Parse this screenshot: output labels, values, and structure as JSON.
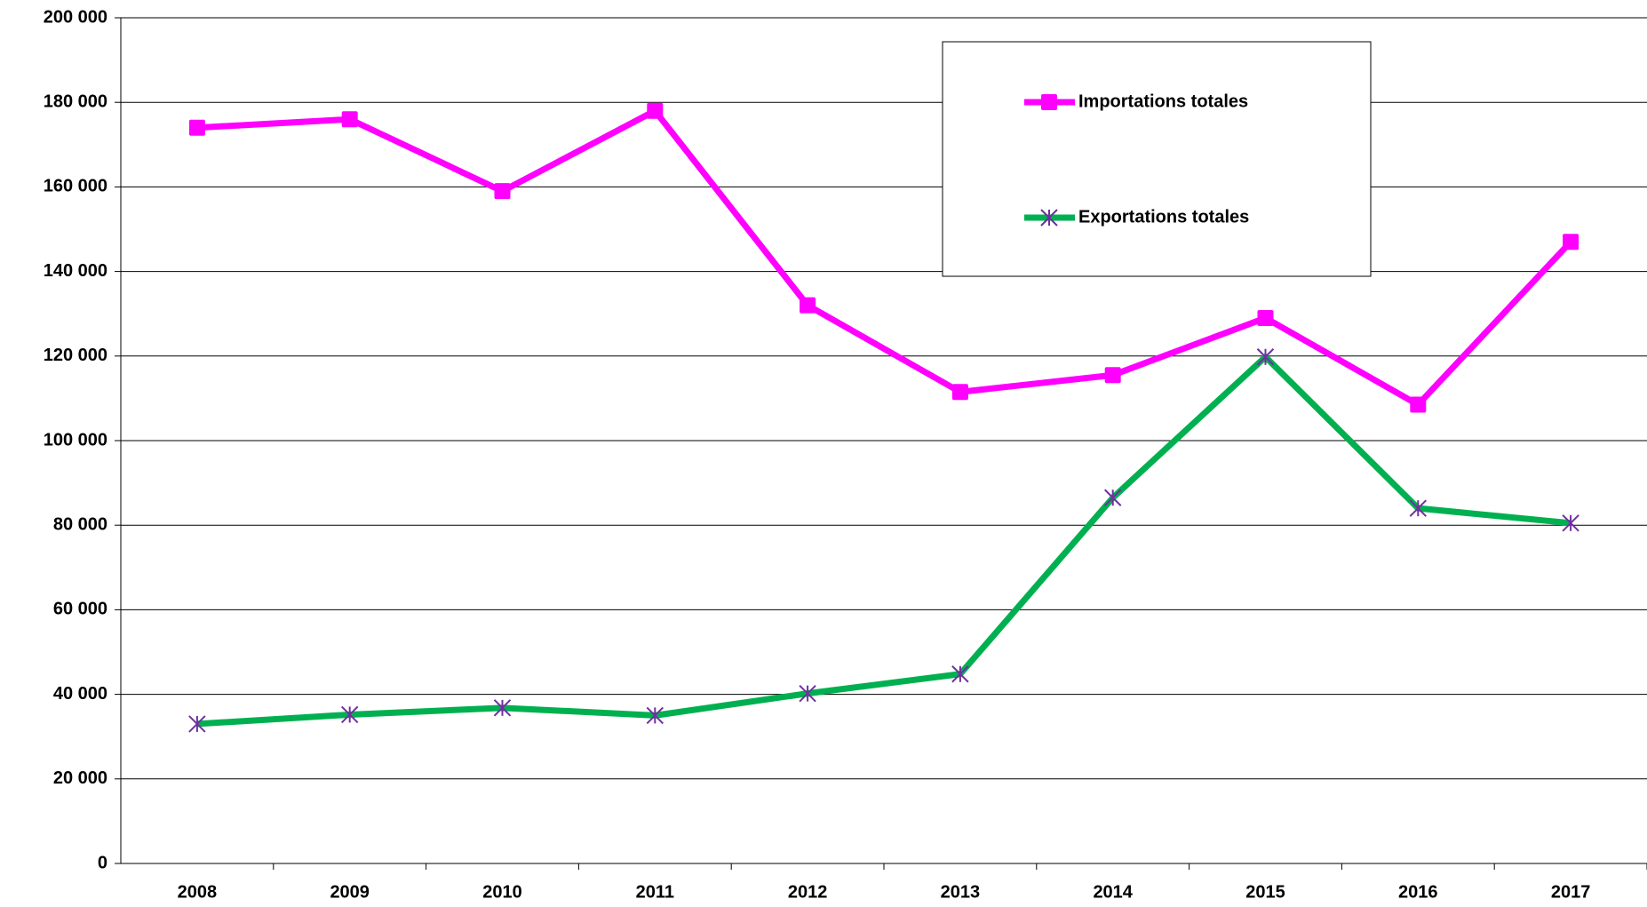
{
  "chart_data": {
    "type": "line",
    "categories": [
      "2008",
      "2009",
      "2010",
      "2011",
      "2012",
      "2013",
      "2014",
      "2015",
      "2016",
      "2017"
    ],
    "series": [
      {
        "name": "Importations totales",
        "color": "#ff00ff",
        "marker": "square",
        "values": [
          174000,
          176000,
          159000,
          178000,
          132000,
          111500,
          115500,
          129000,
          108500,
          147000
        ]
      },
      {
        "name": "Exportations totales",
        "color": "#00b050",
        "marker_color": "#7030a0",
        "marker": "star",
        "values": [
          33000,
          35200,
          36800,
          35000,
          40200,
          44800,
          86500,
          119800,
          84000,
          80500
        ]
      }
    ],
    "ylim": [
      0,
      200000
    ],
    "yticks": [
      {
        "value": 0,
        "label": "0"
      },
      {
        "value": 20000,
        "label": "20 000"
      },
      {
        "value": 40000,
        "label": "40 000"
      },
      {
        "value": 60000,
        "label": "60 000"
      },
      {
        "value": 80000,
        "label": "80 000"
      },
      {
        "value": 100000,
        "label": "100 000"
      },
      {
        "value": 120000,
        "label": "120 000"
      },
      {
        "value": 140000,
        "label": "140 000"
      },
      {
        "value": 160000,
        "label": "160 000"
      },
      {
        "value": 180000,
        "label": "180 000"
      },
      {
        "value": 200000,
        "label": "200 000"
      }
    ],
    "grid": true
  }
}
